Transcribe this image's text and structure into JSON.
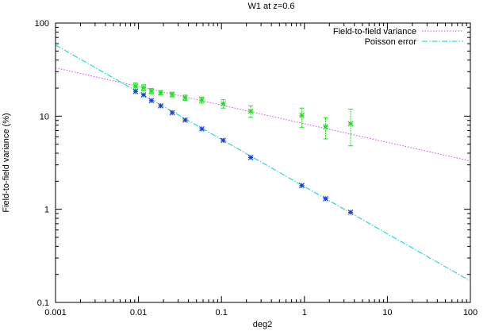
{
  "chart_data": {
    "type": "scatter",
    "title": "W1 at z=0.6",
    "xlabel": "deg2",
    "ylabel": "Field-to-field variance (%)",
    "xscale": "log",
    "yscale": "log",
    "xlim": [
      0.001,
      100
    ],
    "ylim": [
      0.1,
      100
    ],
    "xticks": [
      "0.001",
      "0.01",
      "0.1",
      "1",
      "10",
      "100"
    ],
    "yticks": [
      "0.1",
      "1",
      "10",
      "100"
    ],
    "legend": {
      "position": "top-right",
      "entries": [
        "Field-to-field variance",
        "Poisson error"
      ]
    },
    "fits": [
      {
        "name": "Field-to-field variance",
        "color": "#e040e0",
        "style": "dotted",
        "x": [
          0.001,
          100
        ],
        "y": [
          33,
          3.3
        ]
      },
      {
        "name": "Poisson error",
        "color": "#00d0d0",
        "style": "dash-dot",
        "x": [
          0.001,
          100
        ],
        "y": [
          58,
          0.17
        ]
      }
    ],
    "series": [
      {
        "color": "#22dd22",
        "x": [
          0.0092,
          0.0115,
          0.0143,
          0.0185,
          0.0255,
          0.0365,
          0.058,
          0.105,
          0.225,
          0.93,
          1.8,
          3.6
        ],
        "y": [
          21.0,
          20.2,
          18.6,
          17.8,
          17.1,
          15.8,
          14.9,
          13.6,
          11.3,
          10.2,
          7.7,
          8.3
        ],
        "yerr_low": [
          19.3,
          18.7,
          17.4,
          16.8,
          16.1,
          14.8,
          13.8,
          12.2,
          9.7,
          7.6,
          5.7,
          4.8
        ],
        "yerr_high": [
          22.7,
          21.7,
          19.8,
          18.8,
          18.1,
          16.8,
          16.0,
          15.0,
          12.9,
          12.2,
          9.6,
          11.9
        ]
      },
      {
        "color": "#1a3fd8",
        "x": [
          0.0092,
          0.0115,
          0.0143,
          0.0185,
          0.0255,
          0.0365,
          0.058,
          0.105,
          0.225,
          0.93,
          1.8,
          3.6
        ],
        "y": [
          18.4,
          16.9,
          14.7,
          12.9,
          10.9,
          9.1,
          7.3,
          5.5,
          3.6,
          1.8,
          1.3,
          0.93
        ]
      }
    ]
  }
}
